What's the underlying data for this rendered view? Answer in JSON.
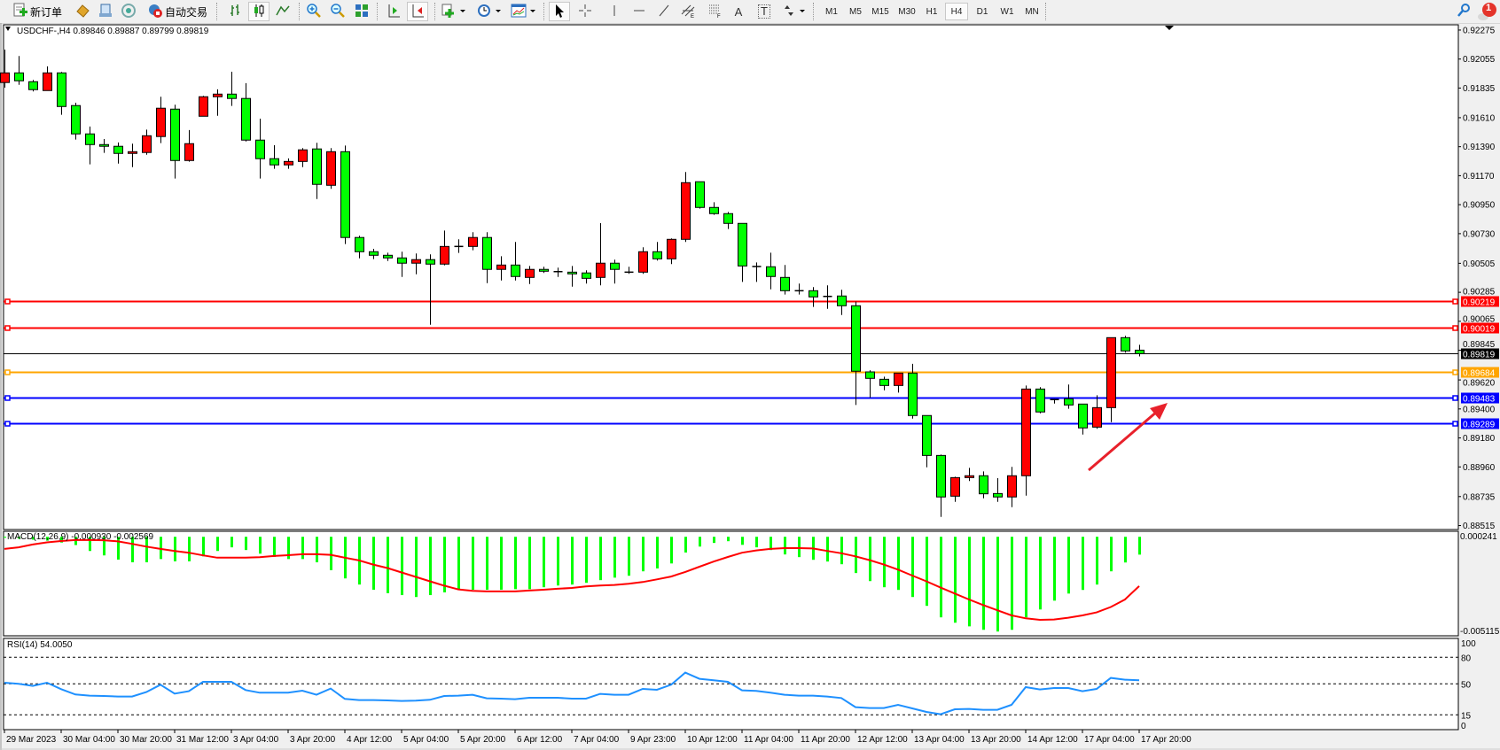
{
  "toolbar": {
    "new_order_label": "新订单",
    "auto_trading_label": "自动交易",
    "icons": [
      "new-order-icon",
      "market-watch-icon",
      "data-window-icon",
      "signals-icon",
      "auto-trading-icon",
      "bar-chart-icon",
      "candlestick-icon",
      "line-chart-icon",
      "zoom-in-icon",
      "zoom-out-icon",
      "tile-windows-icon",
      "chart-shift-icon",
      "autoscroll-icon",
      "indicators-icon",
      "periods-icon",
      "templates-icon",
      "cursor-icon",
      "crosshair-icon",
      "vertical-line-icon",
      "horizontal-line-icon",
      "trendline-icon",
      "channel-icon",
      "fibonacci-icon",
      "text-icon",
      "text-label-icon",
      "arrows-icon",
      "search-icon",
      "notifications-icon"
    ],
    "text_tool_label": "A",
    "label_tool_label": "T",
    "timeframes": [
      "M1",
      "M5",
      "M15",
      "M30",
      "H1",
      "H4",
      "D1",
      "W1",
      "MN"
    ],
    "active_timeframe": "H4",
    "notification_count": "1"
  },
  "chart": {
    "symbol_info": "USDCHF-,H4  0.89846 0.89887 0.89799 0.89819",
    "colors": {
      "bull": "#ff0000",
      "bear": "#00ff00",
      "outline": "#000000",
      "background": "#ffffff"
    },
    "price_range": [
      0.88485,
      0.92315
    ],
    "price_ticks": [
      "0.92275",
      "0.92055",
      "0.91835",
      "0.91610",
      "0.91390",
      "0.91170",
      "0.90950",
      "0.90730",
      "0.90505",
      "0.90285",
      "0.90065",
      "0.89845",
      "0.89620",
      "0.89400",
      "0.89180",
      "0.88960",
      "0.88735",
      "0.88515"
    ],
    "current_price": {
      "value": 0.89819,
      "label": "0.89819",
      "color": "#000000"
    },
    "horizontal_lines": [
      {
        "value": 0.90219,
        "label": "0.90219",
        "color": "#ff0000"
      },
      {
        "value": 0.90019,
        "label": "0.90019",
        "color": "#ff0000"
      },
      {
        "value": 0.89684,
        "label": "0.89684",
        "color": "#ffa500"
      },
      {
        "value": 0.89483,
        "label": "0.89483",
        "color": "#0000ff"
      },
      {
        "value": 0.89289,
        "label": "0.89289",
        "color": "#0000ff"
      }
    ],
    "arrow_annotation_color": "#e8212b",
    "candles_ohlc": [
      [
        0.91877,
        0.92127,
        0.91838,
        0.9195
      ],
      [
        0.9195,
        0.92078,
        0.9186,
        0.9189
      ],
      [
        0.91883,
        0.91897,
        0.91809,
        0.91823
      ],
      [
        0.91816,
        0.91999,
        0.91816,
        0.9195
      ],
      [
        0.9195,
        0.91957,
        0.91632,
        0.91695
      ],
      [
        0.91702,
        0.91724,
        0.91444,
        0.91487
      ],
      [
        0.91487,
        0.91543,
        0.91256,
        0.91406
      ],
      [
        0.91406,
        0.91448,
        0.91343,
        0.91393
      ],
      [
        0.91393,
        0.91422,
        0.91262,
        0.91339
      ],
      [
        0.91339,
        0.91413,
        0.91235,
        0.91352
      ],
      [
        0.91346,
        0.9152,
        0.91329,
        0.91473
      ],
      [
        0.91467,
        0.91769,
        0.91417,
        0.91682
      ],
      [
        0.91675,
        0.91709,
        0.91148,
        0.91285
      ],
      [
        0.91285,
        0.91516,
        0.91276,
        0.91413
      ],
      [
        0.91621,
        0.91776,
        0.91621,
        0.91769
      ],
      [
        0.91769,
        0.91825,
        0.91625,
        0.91789
      ],
      [
        0.91789,
        0.91959,
        0.91699,
        0.91756
      ],
      [
        0.91756,
        0.91872,
        0.9143,
        0.9144
      ],
      [
        0.9144,
        0.91603,
        0.91148,
        0.91299
      ],
      [
        0.91299,
        0.91401,
        0.91222,
        0.91252
      ],
      [
        0.91252,
        0.91301,
        0.91222,
        0.91278
      ],
      [
        0.91278,
        0.91379,
        0.91235,
        0.91366
      ],
      [
        0.91373,
        0.9142,
        0.90993,
        0.91104
      ],
      [
        0.91097,
        0.91379,
        0.9107,
        0.91352
      ],
      [
        0.91352,
        0.91399,
        0.90651,
        0.90701
      ],
      [
        0.90701,
        0.90714,
        0.90543,
        0.90593
      ],
      [
        0.90593,
        0.90615,
        0.90537,
        0.90566
      ],
      [
        0.90566,
        0.90586,
        0.90523,
        0.90546
      ],
      [
        0.90546,
        0.90593,
        0.90402,
        0.90506
      ],
      [
        0.90506,
        0.9058,
        0.90422,
        0.90533
      ],
      [
        0.90533,
        0.90573,
        0.90039,
        0.90499
      ],
      [
        0.90499,
        0.90754,
        0.9049,
        0.90633
      ],
      [
        0.90633,
        0.90687,
        0.90584,
        0.90633
      ],
      [
        0.90633,
        0.90741,
        0.90604,
        0.90701
      ],
      [
        0.90701,
        0.90741,
        0.90355,
        0.90459
      ],
      [
        0.90459,
        0.90559,
        0.90375,
        0.90492
      ],
      [
        0.90492,
        0.90667,
        0.90375,
        0.90405
      ],
      [
        0.90398,
        0.90485,
        0.90348,
        0.90459
      ],
      [
        0.90459,
        0.90479,
        0.90432,
        0.90445
      ],
      [
        0.90442,
        0.90472,
        0.90402,
        0.90442
      ],
      [
        0.90438,
        0.90485,
        0.90328,
        0.90425
      ],
      [
        0.90432,
        0.90452,
        0.90351,
        0.90391
      ],
      [
        0.90398,
        0.9081,
        0.90338,
        0.90506
      ],
      [
        0.90506,
        0.90533,
        0.90351,
        0.90459
      ],
      [
        0.90438,
        0.90479,
        0.90425,
        0.90438
      ],
      [
        0.90438,
        0.90627,
        0.90425,
        0.90593
      ],
      [
        0.90593,
        0.90667,
        0.90526,
        0.90539
      ],
      [
        0.90539,
        0.90694,
        0.90499,
        0.90687
      ],
      [
        0.90687,
        0.91198,
        0.90667,
        0.91117
      ],
      [
        0.91124,
        0.91124,
        0.9092,
        0.90929
      ],
      [
        0.90929,
        0.90969,
        0.90873,
        0.90882
      ],
      [
        0.90882,
        0.90895,
        0.90765,
        0.90808
      ],
      [
        0.90808,
        0.90808,
        0.90364,
        0.90485
      ],
      [
        0.90481,
        0.90512,
        0.90364,
        0.90481
      ],
      [
        0.90479,
        0.90586,
        0.90308,
        0.90405
      ],
      [
        0.90398,
        0.90492,
        0.90268,
        0.90297
      ],
      [
        0.90297,
        0.90351,
        0.90268,
        0.90297
      ],
      [
        0.90297,
        0.90324,
        0.90174,
        0.9025
      ],
      [
        0.90254,
        0.90338,
        0.9016,
        0.90254
      ],
      [
        0.90257,
        0.90304,
        0.90113,
        0.90183
      ],
      [
        0.90183,
        0.90214,
        0.8943,
        0.89686
      ],
      [
        0.89681,
        0.89694,
        0.89486,
        0.89632
      ],
      [
        0.89625,
        0.89645,
        0.89542,
        0.89578
      ],
      [
        0.89578,
        0.89672,
        0.89524,
        0.89672
      ],
      [
        0.89672,
        0.89742,
        0.89327,
        0.8935
      ],
      [
        0.8935,
        0.8935,
        0.88957,
        0.89047
      ],
      [
        0.89047,
        0.89054,
        0.88581,
        0.88732
      ],
      [
        0.88738,
        0.88886,
        0.88695,
        0.88879
      ],
      [
        0.88879,
        0.88953,
        0.88853,
        0.88893
      ],
      [
        0.88893,
        0.88926,
        0.88722,
        0.88756
      ],
      [
        0.88758,
        0.88875,
        0.88695,
        0.88732
      ],
      [
        0.88732,
        0.8896,
        0.88655,
        0.88893
      ],
      [
        0.88893,
        0.89578,
        0.88742,
        0.89551
      ],
      [
        0.89551,
        0.89565,
        0.89367,
        0.89377
      ],
      [
        0.89471,
        0.89477,
        0.89441,
        0.89471
      ],
      [
        0.89477,
        0.89585,
        0.89401,
        0.8943
      ],
      [
        0.89437,
        0.89437,
        0.89206,
        0.89256
      ],
      [
        0.89262,
        0.89504,
        0.89249,
        0.8941
      ],
      [
        0.8941,
        0.89941,
        0.893,
        0.89941
      ],
      [
        0.89941,
        0.89955,
        0.89827,
        0.8984
      ],
      [
        0.89846,
        0.89887,
        0.89799,
        0.89819
      ]
    ],
    "time_labels": [
      "29 Mar 2023",
      "30 Mar 04:00",
      "30 Mar 20:00",
      "31 Mar 12:00",
      "3 Apr 04:00",
      "3 Apr 20:00",
      "4 Apr 12:00",
      "5 Apr 04:00",
      "5 Apr 20:00",
      "6 Apr 12:00",
      "7 Apr 04:00",
      "9 Apr 23:00",
      "10 Apr 12:00",
      "11 Apr 04:00",
      "11 Apr 20:00",
      "12 Apr 12:00",
      "13 Apr 04:00",
      "13 Apr 20:00",
      "14 Apr 12:00",
      "17 Apr 04:00",
      "17 Apr 20:00"
    ]
  },
  "macd": {
    "title": "MACD(12,26,9) -0.000930 -0.002569",
    "range": [
      -0.005115,
      0.000241
    ],
    "top_label": "0.000241",
    "bottom_label": "-0.005115",
    "histogram_color": "#00ff00",
    "signal_color": "#ff0000",
    "histogram": [
      -5e-05,
      -0.0001,
      -0.00015,
      -0.0002,
      -0.0003,
      -0.00043,
      -0.00074,
      -0.00097,
      -0.00119,
      -0.00133,
      -0.00133,
      -0.00116,
      -0.00128,
      -0.00128,
      -0.00102,
      -0.00074,
      -0.00055,
      -0.00069,
      -0.00088,
      -0.00105,
      -0.00116,
      -0.00116,
      -0.00133,
      -0.00174,
      -0.00217,
      -0.00249,
      -0.00276,
      -0.00294,
      -0.00304,
      -0.00314,
      -0.00304,
      -0.0029,
      -0.00276,
      -0.00276,
      -0.00276,
      -0.00276,
      -0.00273,
      -0.00273,
      -0.00263,
      -0.00254,
      -0.00249,
      -0.0024,
      -0.00226,
      -0.00213,
      -0.00203,
      -0.0018,
      -0.00165,
      -0.00139,
      -0.00082,
      -0.00051,
      -0.00032,
      -0.00023,
      -0.00042,
      -0.00055,
      -0.00069,
      -0.00092,
      -0.00106,
      -0.0012,
      -0.00129,
      -0.00143,
      -0.00189,
      -0.00231,
      -0.00263,
      -0.00277,
      -0.00314,
      -0.0036,
      -0.0042,
      -0.00448,
      -0.00467,
      -0.00485,
      -0.00494,
      -0.00485,
      -0.0042,
      -0.00379,
      -0.00333,
      -0.00296,
      -0.00277,
      -0.00249,
      -0.0018,
      -0.00134,
      -0.00093
    ],
    "signal": [
      -0.00063,
      -0.00055,
      -0.0004,
      -0.00029,
      -0.00022,
      -0.00017,
      -0.00017,
      -0.00018,
      -0.00024,
      -0.00037,
      -0.00051,
      -0.00063,
      -0.00074,
      -0.00083,
      -0.00097,
      -0.00109,
      -0.00109,
      -0.00109,
      -0.00106,
      -0.001,
      -0.00096,
      -0.00091,
      -0.00091,
      -0.00094,
      -0.00109,
      -0.00123,
      -0.00145,
      -0.00163,
      -0.00186,
      -0.00209,
      -0.00232,
      -0.00255,
      -0.00274,
      -0.00282,
      -0.00285,
      -0.00285,
      -0.00285,
      -0.0028,
      -0.00276,
      -0.00271,
      -0.00267,
      -0.00259,
      -0.00254,
      -0.00251,
      -0.00245,
      -0.00236,
      -0.00222,
      -0.00207,
      -0.00183,
      -0.00156,
      -0.00129,
      -0.00105,
      -0.00083,
      -0.00071,
      -0.00063,
      -0.00059,
      -0.00059,
      -0.00061,
      -0.00074,
      -0.00086,
      -0.00102,
      -0.00122,
      -0.00145,
      -0.00171,
      -0.00202,
      -0.00232,
      -0.00265,
      -0.00296,
      -0.00327,
      -0.00356,
      -0.00383,
      -0.0041,
      -0.00425,
      -0.00433,
      -0.00431,
      -0.00422,
      -0.0041,
      -0.00394,
      -0.00366,
      -0.00327,
      -0.002569
    ]
  },
  "rsi": {
    "title": "RSI(14) 54.0050",
    "range": [
      0,
      100
    ],
    "levels": [
      80,
      50,
      15
    ],
    "axis_labels": [
      "100",
      "80",
      "50",
      "15",
      "0"
    ],
    "line_color": "#1e90ff",
    "values": [
      51.3,
      50,
      47.7,
      51.3,
      44,
      38,
      36.7,
      36.3,
      35.7,
      35.7,
      40.7,
      49,
      39,
      41.7,
      52.3,
      52.3,
      52.3,
      43,
      40,
      40,
      40,
      42.3,
      37.7,
      44.7,
      33,
      31.7,
      31.7,
      31.3,
      30.7,
      31,
      32,
      36.3,
      36.7,
      37.7,
      33.7,
      33.3,
      32.7,
      34.3,
      34.3,
      34.3,
      33.3,
      33.3,
      38.7,
      37.7,
      37.7,
      44.3,
      43.3,
      49,
      62.7,
      55.7,
      54,
      52.3,
      42.7,
      42,
      40,
      37.7,
      36.7,
      36.7,
      35.7,
      34,
      23.7,
      22.7,
      22.7,
      26.3,
      22.3,
      18.3,
      15.7,
      21.3,
      21.7,
      20.7,
      20.7,
      26.3,
      46.3,
      43.7,
      45.3,
      45.3,
      41.7,
      44.3,
      56.7,
      54.7,
      54.005
    ]
  }
}
